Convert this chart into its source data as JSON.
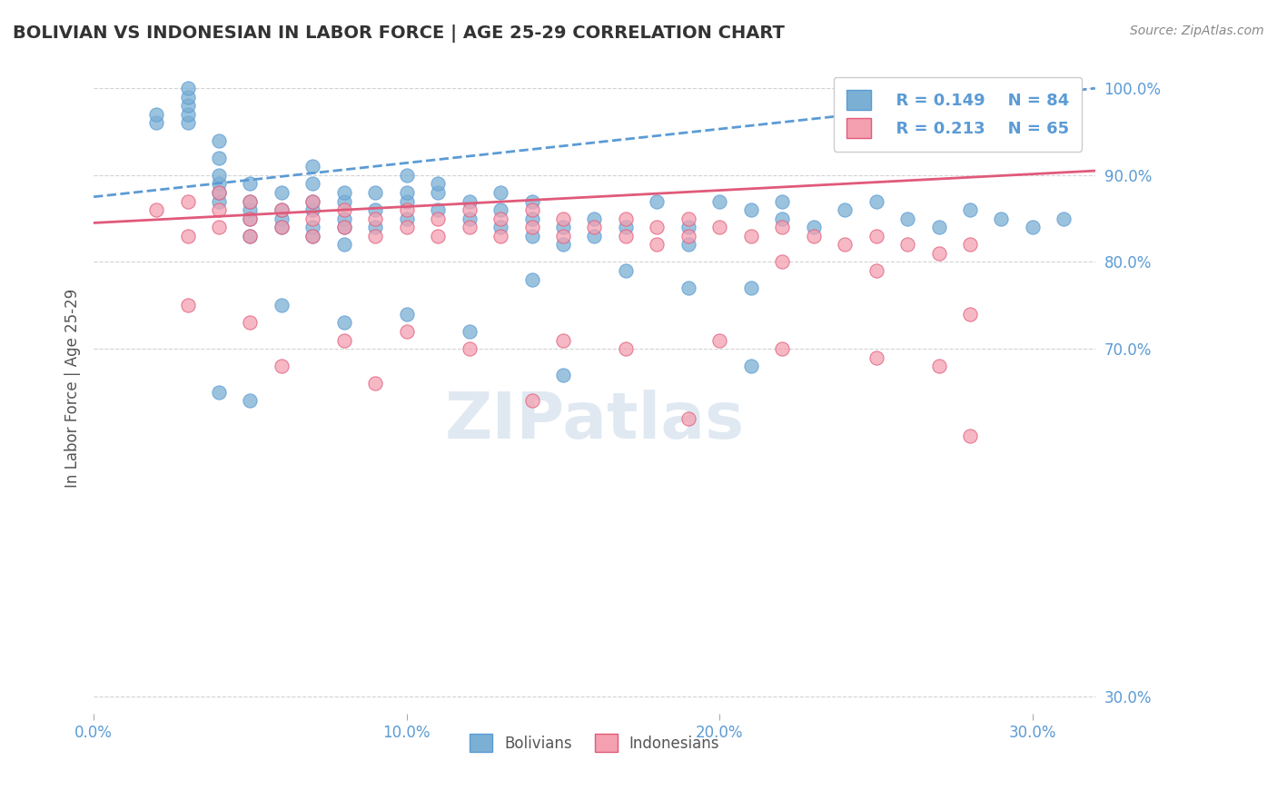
{
  "title": "BOLIVIAN VS INDONESIAN IN LABOR FORCE | AGE 25-29 CORRELATION CHART",
  "source_text": "Source: ZipAtlas.com",
  "ylabel": "In Labor Force | Age 25-29",
  "xlabel": "",
  "xlim": [
    0.0,
    0.32
  ],
  "ylim": [
    0.28,
    1.03
  ],
  "yticks": [
    0.3,
    0.7,
    0.8,
    0.9,
    1.0
  ],
  "ytick_labels": [
    "30.0%",
    "70.0%",
    "80.0%",
    "90.0%",
    "100.0%"
  ],
  "xticks": [
    0.0,
    0.1,
    0.2,
    0.3
  ],
  "xtick_labels": [
    "0.0%",
    "10.0%",
    "20.0%",
    "30.0%"
  ],
  "legend_R_blue": "R = 0.149",
  "legend_N_blue": "N = 84",
  "legend_R_pink": "R = 0.213",
  "legend_N_pink": "N = 65",
  "legend_label_blue": "Bolivians",
  "legend_label_pink": "Indonesians",
  "blue_color": "#7bafd4",
  "pink_color": "#f4a0b0",
  "trend_blue_color": "#5b9bd5",
  "trend_pink_color": "#e05a7a",
  "title_color": "#333333",
  "axis_color": "#5b9bd5",
  "grid_color": "#c0c0c0",
  "watermark_text": "ZIPatlas",
  "blue_x": [
    0.02,
    0.02,
    0.03,
    0.03,
    0.03,
    0.03,
    0.03,
    0.04,
    0.04,
    0.04,
    0.04,
    0.04,
    0.04,
    0.05,
    0.05,
    0.05,
    0.05,
    0.05,
    0.06,
    0.06,
    0.06,
    0.06,
    0.07,
    0.07,
    0.07,
    0.07,
    0.07,
    0.07,
    0.08,
    0.08,
    0.08,
    0.08,
    0.08,
    0.09,
    0.09,
    0.09,
    0.1,
    0.1,
    0.1,
    0.1,
    0.11,
    0.11,
    0.11,
    0.12,
    0.12,
    0.13,
    0.13,
    0.13,
    0.14,
    0.14,
    0.14,
    0.15,
    0.15,
    0.16,
    0.16,
    0.17,
    0.18,
    0.19,
    0.19,
    0.2,
    0.21,
    0.22,
    0.22,
    0.23,
    0.24,
    0.25,
    0.26,
    0.27,
    0.28,
    0.29,
    0.3,
    0.31,
    0.14,
    0.17,
    0.19,
    0.21,
    0.06,
    0.08,
    0.1,
    0.12,
    0.04,
    0.05,
    0.15,
    0.21
  ],
  "blue_y": [
    0.96,
    0.97,
    0.96,
    0.97,
    0.98,
    0.99,
    1.0,
    0.87,
    0.88,
    0.89,
    0.9,
    0.92,
    0.94,
    0.83,
    0.85,
    0.86,
    0.87,
    0.89,
    0.84,
    0.85,
    0.86,
    0.88,
    0.83,
    0.84,
    0.86,
    0.87,
    0.89,
    0.91,
    0.82,
    0.84,
    0.85,
    0.87,
    0.88,
    0.84,
    0.86,
    0.88,
    0.85,
    0.87,
    0.88,
    0.9,
    0.86,
    0.88,
    0.89,
    0.85,
    0.87,
    0.84,
    0.86,
    0.88,
    0.83,
    0.85,
    0.87,
    0.82,
    0.84,
    0.83,
    0.85,
    0.84,
    0.87,
    0.82,
    0.84,
    0.87,
    0.86,
    0.85,
    0.87,
    0.84,
    0.86,
    0.87,
    0.85,
    0.84,
    0.86,
    0.85,
    0.84,
    0.85,
    0.78,
    0.79,
    0.77,
    0.77,
    0.75,
    0.73,
    0.74,
    0.72,
    0.65,
    0.64,
    0.67,
    0.68
  ],
  "pink_x": [
    0.02,
    0.03,
    0.03,
    0.04,
    0.04,
    0.04,
    0.05,
    0.05,
    0.05,
    0.06,
    0.06,
    0.07,
    0.07,
    0.07,
    0.08,
    0.08,
    0.09,
    0.09,
    0.1,
    0.1,
    0.11,
    0.11,
    0.12,
    0.12,
    0.13,
    0.13,
    0.14,
    0.14,
    0.15,
    0.15,
    0.16,
    0.17,
    0.17,
    0.18,
    0.19,
    0.19,
    0.2,
    0.21,
    0.22,
    0.23,
    0.24,
    0.25,
    0.26,
    0.27,
    0.28,
    0.03,
    0.05,
    0.08,
    0.1,
    0.12,
    0.15,
    0.17,
    0.2,
    0.22,
    0.25,
    0.27,
    0.18,
    0.22,
    0.25,
    0.28,
    0.06,
    0.09,
    0.14,
    0.19,
    0.28
  ],
  "pink_y": [
    0.86,
    0.83,
    0.87,
    0.84,
    0.86,
    0.88,
    0.83,
    0.85,
    0.87,
    0.84,
    0.86,
    0.83,
    0.85,
    0.87,
    0.84,
    0.86,
    0.83,
    0.85,
    0.84,
    0.86,
    0.83,
    0.85,
    0.84,
    0.86,
    0.83,
    0.85,
    0.84,
    0.86,
    0.83,
    0.85,
    0.84,
    0.83,
    0.85,
    0.84,
    0.83,
    0.85,
    0.84,
    0.83,
    0.84,
    0.83,
    0.82,
    0.83,
    0.82,
    0.81,
    0.82,
    0.75,
    0.73,
    0.71,
    0.72,
    0.7,
    0.71,
    0.7,
    0.71,
    0.7,
    0.69,
    0.68,
    0.82,
    0.8,
    0.79,
    0.74,
    0.68,
    0.66,
    0.64,
    0.62,
    0.6
  ]
}
